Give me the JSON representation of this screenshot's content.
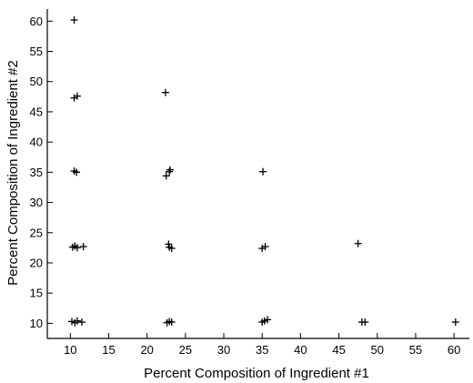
{
  "chart_data": {
    "type": "scatter",
    "title": "",
    "xlabel": "Percent Composition of Ingredient #1",
    "ylabel": "Percent Composition of Ingredient #2",
    "xlim": [
      7,
      62
    ],
    "ylim": [
      7.5,
      62
    ],
    "xticks": [
      10,
      15,
      20,
      25,
      30,
      35,
      40,
      45,
      50,
      55,
      60
    ],
    "yticks": [
      10,
      15,
      20,
      25,
      30,
      35,
      40,
      45,
      50,
      55,
      60
    ],
    "grid": false,
    "marker": "plus",
    "points": [
      {
        "x": 10.5,
        "y": 60.2
      },
      {
        "x": 10.5,
        "y": 47.3
      },
      {
        "x": 10.9,
        "y": 47.6
      },
      {
        "x": 10.5,
        "y": 35.2
      },
      {
        "x": 10.8,
        "y": 35.0
      },
      {
        "x": 10.3,
        "y": 22.6
      },
      {
        "x": 10.6,
        "y": 22.8
      },
      {
        "x": 10.9,
        "y": 22.5
      },
      {
        "x": 11.7,
        "y": 22.7
      },
      {
        "x": 10.2,
        "y": 10.3
      },
      {
        "x": 10.6,
        "y": 10.1
      },
      {
        "x": 10.9,
        "y": 10.4
      },
      {
        "x": 11.5,
        "y": 10.2
      },
      {
        "x": 22.4,
        "y": 48.2
      },
      {
        "x": 22.5,
        "y": 34.4
      },
      {
        "x": 22.9,
        "y": 35.1
      },
      {
        "x": 23.0,
        "y": 35.4
      },
      {
        "x": 22.8,
        "y": 23.1
      },
      {
        "x": 22.9,
        "y": 22.6
      },
      {
        "x": 23.2,
        "y": 22.4
      },
      {
        "x": 22.6,
        "y": 10.1
      },
      {
        "x": 22.9,
        "y": 10.3
      },
      {
        "x": 23.2,
        "y": 10.2
      },
      {
        "x": 35.1,
        "y": 35.1
      },
      {
        "x": 35.0,
        "y": 22.4
      },
      {
        "x": 35.4,
        "y": 22.7
      },
      {
        "x": 35.0,
        "y": 10.2
      },
      {
        "x": 35.3,
        "y": 10.4
      },
      {
        "x": 35.7,
        "y": 10.6
      },
      {
        "x": 47.5,
        "y": 23.2
      },
      {
        "x": 48.0,
        "y": 10.2
      },
      {
        "x": 48.4,
        "y": 10.2
      },
      {
        "x": 60.2,
        "y": 10.2
      }
    ]
  }
}
